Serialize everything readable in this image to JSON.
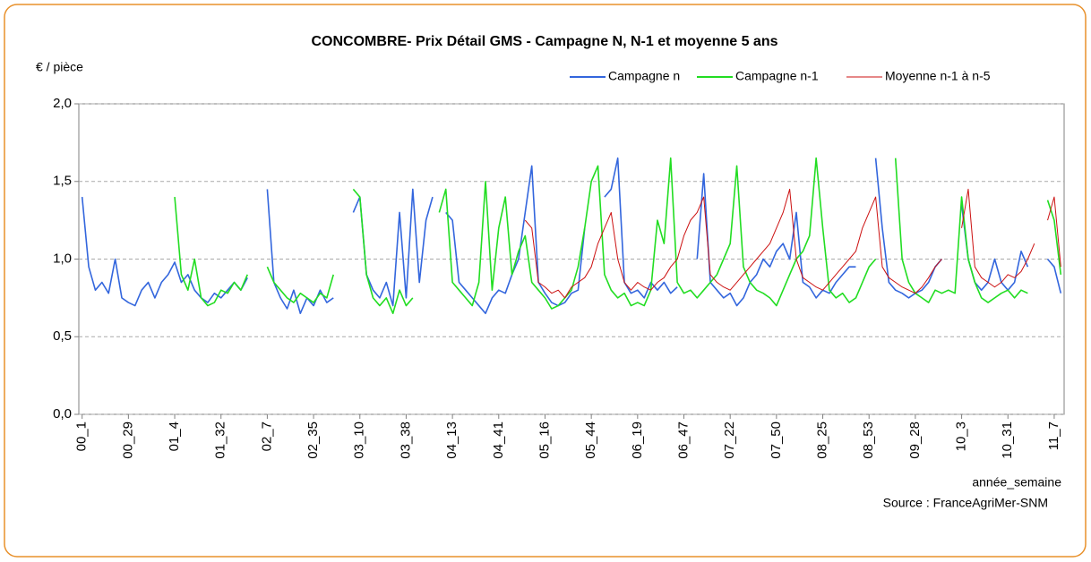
{
  "chart_data": {
    "type": "line",
    "title": "CONCOMBRE- Prix Détail GMS - Campagne N, N-1 et moyenne 5 ans",
    "y_label": "€ / pièce",
    "x_label": "année_semaine",
    "source": "Source : FranceAgriMer-SNM",
    "ylim": [
      0,
      2
    ],
    "yticks": [
      {
        "value": 0,
        "label": "0,0"
      },
      {
        "value": 0.5,
        "label": "0,5"
      },
      {
        "value": 1,
        "label": "1,0"
      },
      {
        "value": 1.5,
        "label": "1,5"
      },
      {
        "value": 2,
        "label": "2,0"
      }
    ],
    "grid": true,
    "legend": "top-right",
    "categories": [
      "00_1",
      null,
      null,
      null,
      null,
      null,
      null,
      "00_29",
      null,
      null,
      null,
      null,
      null,
      null,
      "01_4",
      null,
      null,
      null,
      null,
      null,
      null,
      "01_32",
      null,
      null,
      null,
      null,
      null,
      null,
      "02_7",
      null,
      null,
      null,
      null,
      null,
      null,
      "02_35",
      null,
      null,
      null,
      null,
      null,
      null,
      "03_10",
      null,
      null,
      null,
      null,
      null,
      null,
      "03_38",
      null,
      null,
      null,
      null,
      null,
      null,
      "04_13",
      null,
      null,
      null,
      null,
      null,
      null,
      "04_41",
      null,
      null,
      null,
      null,
      null,
      null,
      "05_16",
      null,
      null,
      null,
      null,
      null,
      null,
      "05_44",
      null,
      null,
      null,
      null,
      null,
      null,
      "06_19",
      null,
      null,
      null,
      null,
      null,
      null,
      "06_47",
      null,
      null,
      null,
      null,
      null,
      null,
      "07_22",
      null,
      null,
      null,
      null,
      null,
      null,
      "07_50",
      null,
      null,
      null,
      null,
      null,
      null,
      "08_25",
      null,
      null,
      null,
      null,
      null,
      null,
      "08_53",
      null,
      null,
      null,
      null,
      null,
      null,
      "09_28",
      null,
      null,
      null,
      null,
      null,
      null,
      "10_3",
      null,
      null,
      null,
      null,
      null,
      null,
      "10_31",
      null,
      null,
      null,
      null,
      null,
      null,
      "11_7",
      null
    ],
    "series": [
      {
        "name": "Campagne n",
        "color": "#3366dd",
        "values": [
          1.4,
          0.95,
          0.8,
          0.85,
          0.78,
          1.0,
          0.75,
          0.72,
          0.7,
          0.8,
          0.85,
          0.75,
          0.85,
          0.9,
          0.98,
          0.85,
          0.9,
          0.8,
          0.75,
          0.72,
          0.78,
          0.75,
          0.8,
          0.85,
          0.8,
          0.88,
          null,
          null,
          1.45,
          0.85,
          0.75,
          0.68,
          0.8,
          0.65,
          0.75,
          0.7,
          0.8,
          0.72,
          0.75,
          null,
          null,
          1.3,
          1.4,
          0.9,
          0.8,
          0.75,
          0.85,
          0.7,
          1.3,
          0.75,
          1.45,
          0.85,
          1.25,
          1.4,
          null,
          1.3,
          1.25,
          0.85,
          0.8,
          0.75,
          0.7,
          0.65,
          0.75,
          0.8,
          0.78,
          0.9,
          1.0,
          1.3,
          1.6,
          0.85,
          0.78,
          0.72,
          0.7,
          0.72,
          0.78,
          0.8,
          1.2,
          null,
          null,
          1.4,
          1.45,
          1.65,
          0.85,
          0.78,
          0.8,
          0.75,
          0.85,
          0.8,
          0.85,
          0.78,
          0.82,
          null,
          null,
          1.0,
          1.55,
          0.85,
          0.8,
          0.75,
          0.78,
          0.7,
          0.75,
          0.85,
          0.9,
          1.0,
          0.95,
          1.05,
          1.1,
          1.0,
          1.3,
          0.85,
          0.82,
          0.75,
          0.8,
          0.78,
          0.85,
          0.9,
          0.95,
          0.95,
          null,
          null,
          1.65,
          1.2,
          0.85,
          0.8,
          0.78,
          0.75,
          0.78,
          0.8,
          0.85,
          0.95,
          1.0,
          null,
          null,
          1.35,
          1.0,
          0.85,
          0.8,
          0.85,
          1.0,
          0.85,
          0.8,
          0.85,
          1.05,
          0.95,
          null,
          null,
          1.0,
          0.95,
          0.78
        ]
      },
      {
        "name": "Campagne n-1",
        "color": "#22dd22",
        "values": [
          null,
          null,
          null,
          null,
          null,
          null,
          null,
          null,
          null,
          null,
          null,
          null,
          null,
          null,
          1.4,
          0.9,
          0.8,
          1.0,
          0.75,
          0.7,
          0.72,
          0.8,
          0.78,
          0.85,
          0.8,
          0.9,
          null,
          null,
          0.95,
          0.85,
          0.8,
          0.75,
          0.72,
          0.78,
          0.75,
          0.72,
          0.78,
          0.75,
          0.9,
          null,
          null,
          1.45,
          1.4,
          0.9,
          0.75,
          0.7,
          0.75,
          0.65,
          0.8,
          0.7,
          0.75,
          null,
          null,
          null,
          1.3,
          1.45,
          0.85,
          0.8,
          0.75,
          0.7,
          0.85,
          1.5,
          0.8,
          1.2,
          1.4,
          0.9,
          1.05,
          1.15,
          0.85,
          0.8,
          0.75,
          0.68,
          0.7,
          0.75,
          0.8,
          0.95,
          1.2,
          1.5,
          1.6,
          0.9,
          0.8,
          0.75,
          0.78,
          0.7,
          0.72,
          0.7,
          0.8,
          1.25,
          1.1,
          1.65,
          0.85,
          0.78,
          0.8,
          0.75,
          0.8,
          0.85,
          0.9,
          1.0,
          1.1,
          1.6,
          0.95,
          0.85,
          0.8,
          0.78,
          0.75,
          0.7,
          0.8,
          0.9,
          1.0,
          1.05,
          1.15,
          1.65,
          1.2,
          0.8,
          0.75,
          0.78,
          0.72,
          0.75,
          0.85,
          0.95,
          1.0,
          null,
          null,
          1.65,
          1.0,
          0.85,
          0.78,
          0.75,
          0.72,
          0.8,
          0.78,
          0.8,
          0.78,
          1.4,
          1.0,
          0.85,
          0.75,
          0.72,
          0.75,
          0.78,
          0.8,
          0.75,
          0.8,
          0.78,
          null,
          null,
          1.38,
          1.25,
          0.9
        ]
      },
      {
        "name": "Moyenne n-1 à n-5",
        "color": "#cc1111",
        "values": [
          null,
          null,
          null,
          null,
          null,
          null,
          null,
          null,
          null,
          null,
          null,
          null,
          null,
          null,
          null,
          null,
          null,
          null,
          null,
          null,
          null,
          null,
          null,
          null,
          null,
          null,
          null,
          null,
          null,
          null,
          null,
          null,
          null,
          null,
          null,
          null,
          null,
          null,
          null,
          null,
          null,
          null,
          null,
          null,
          null,
          null,
          null,
          null,
          null,
          null,
          null,
          null,
          null,
          null,
          null,
          null,
          null,
          null,
          null,
          null,
          null,
          null,
          null,
          null,
          null,
          null,
          null,
          1.25,
          1.2,
          0.85,
          0.82,
          0.78,
          0.8,
          0.75,
          0.82,
          0.85,
          0.88,
          0.95,
          1.1,
          1.2,
          1.3,
          1.0,
          0.85,
          0.8,
          0.85,
          0.82,
          0.8,
          0.85,
          0.88,
          0.95,
          1.0,
          1.15,
          1.25,
          1.3,
          1.4,
          0.9,
          0.85,
          0.82,
          0.8,
          0.85,
          0.9,
          0.95,
          1.0,
          1.05,
          1.1,
          1.2,
          1.3,
          1.45,
          1.0,
          0.88,
          0.85,
          0.82,
          0.8,
          0.85,
          0.9,
          0.95,
          1.0,
          1.05,
          1.2,
          1.3,
          1.4,
          0.95,
          0.88,
          0.85,
          0.82,
          0.8,
          0.78,
          0.82,
          0.88,
          0.95,
          1.0,
          null,
          null,
          1.2,
          1.45,
          0.95,
          0.88,
          0.85,
          0.82,
          0.85,
          0.9,
          0.88,
          0.92,
          1.0,
          1.1,
          null,
          1.25,
          1.4,
          0.95
        ]
      }
    ]
  }
}
